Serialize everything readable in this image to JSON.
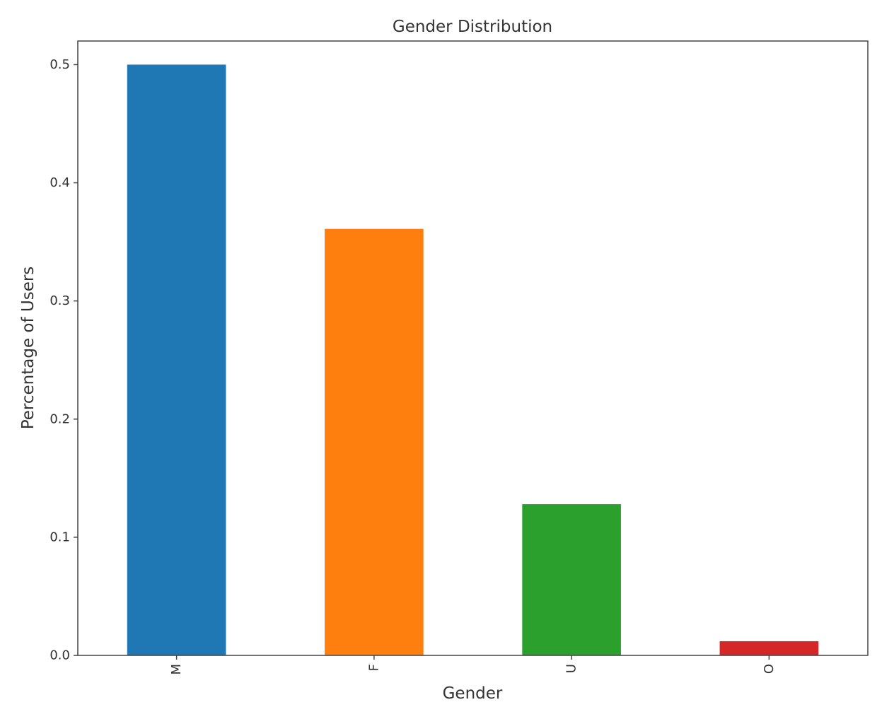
{
  "chart_data": {
    "type": "bar",
    "title": "Gender Distribution",
    "xlabel": "Gender",
    "ylabel": "Percentage of Users",
    "categories": [
      "M",
      "F",
      "U",
      "O"
    ],
    "values": [
      0.5,
      0.361,
      0.128,
      0.012
    ],
    "colors": [
      "#1f77b4",
      "#ff7f0e",
      "#2ca02c",
      "#d62728"
    ],
    "ylim": [
      0,
      0.52
    ],
    "yticks": [
      0.0,
      0.1,
      0.2,
      0.3,
      0.4,
      0.5
    ],
    "ytick_labels": [
      "0.0",
      "0.1",
      "0.2",
      "0.3",
      "0.4",
      "0.5"
    ],
    "xtick_rotation": 90,
    "grid": false,
    "legend": "none"
  }
}
